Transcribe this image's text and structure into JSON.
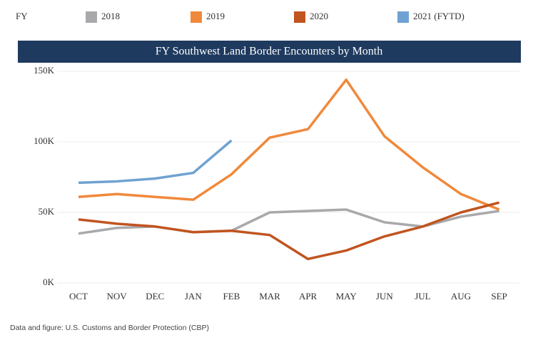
{
  "chart_data": {
    "type": "line",
    "title": "FY Southwest Land Border Encounters by Month",
    "legend_title": "FY",
    "source": "Data and figure: U.S. Customs and Border Protection (CBP)",
    "categories": [
      "OCT",
      "NOV",
      "DEC",
      "JAN",
      "FEB",
      "MAR",
      "APR",
      "MAY",
      "JUN",
      "JUL",
      "AUG",
      "SEP"
    ],
    "series": [
      {
        "name": "2018",
        "color": "#a9a9ab",
        "values": [
          35000,
          39000,
          40000,
          36000,
          37000,
          50000,
          51000,
          52000,
          43000,
          40000,
          47000,
          51000
        ]
      },
      {
        "name": "2019",
        "color": "#f0893b",
        "values": [
          61000,
          63000,
          61000,
          59000,
          77000,
          103000,
          109000,
          144000,
          104000,
          82000,
          63000,
          52000
        ]
      },
      {
        "name": "2020",
        "color": "#c1541f",
        "values": [
          45000,
          42000,
          40000,
          36000,
          37000,
          34000,
          17000,
          23000,
          33000,
          40000,
          50000,
          57000
        ]
      },
      {
        "name": "2021 (FYTD)",
        "color": "#6fa2d2",
        "values": [
          71000,
          72000,
          74000,
          78000,
          101000,
          null,
          null,
          null,
          null,
          null,
          null,
          null
        ]
      }
    ],
    "ylim": [
      0,
      150000
    ],
    "yticks": [
      {
        "value": 0,
        "label": "0K"
      },
      {
        "value": 50000,
        "label": "50K"
      },
      {
        "value": 100000,
        "label": "100K"
      },
      {
        "value": 150000,
        "label": "150K"
      }
    ],
    "grid": true,
    "legend": "top"
  }
}
